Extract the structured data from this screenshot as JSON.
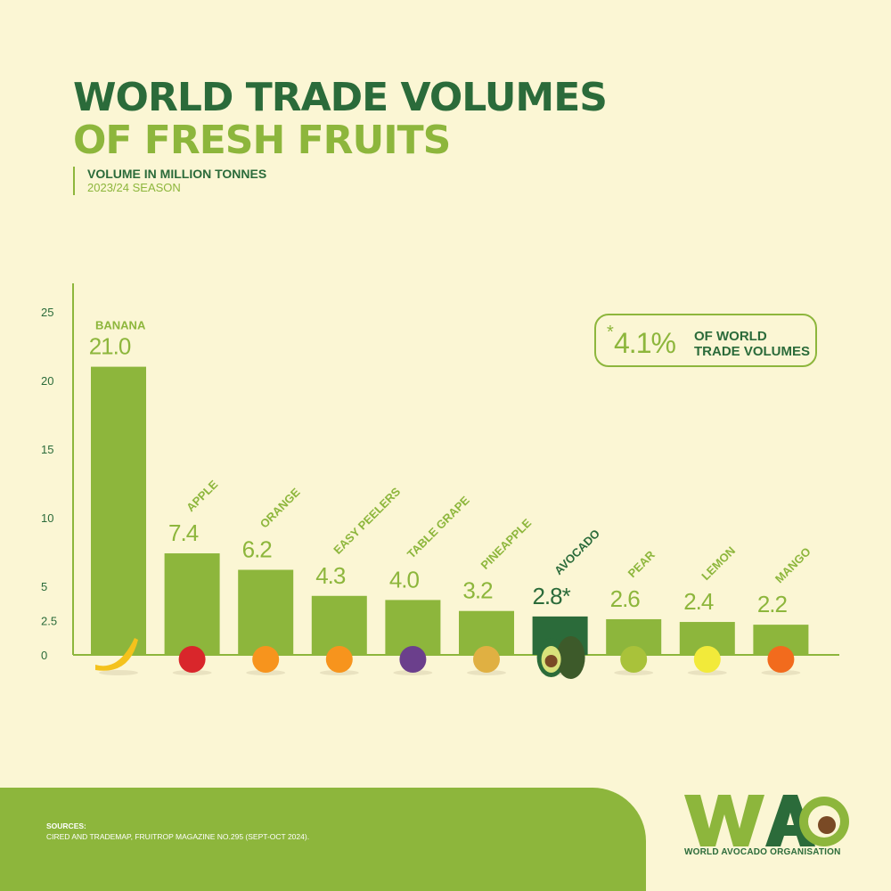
{
  "title_line1": "WORLD TRADE VOLUMES",
  "title_line2": "OF FRESH FRUITS",
  "subtitle_line1": "VOLUME IN MILLION TONNES",
  "subtitle_line2": "2023/24 SEASON",
  "callout": {
    "star": "*",
    "percent": "4.1%",
    "text_line1": "OF WORLD",
    "text_line2": "TRADE VOLUMES"
  },
  "sources_heading": "SOURCES:",
  "sources_text": "CIRED AND TRADEMAP, FRUITROP MAGAZINE NO.295 (SEPT-OCT 2024).",
  "logo_text": "WORLD AVOCADO ORGANISATION",
  "colors": {
    "bar": "#8db63c",
    "highlight": "#2b6b3a",
    "background": "#fbf6d4"
  },
  "chart_data": {
    "type": "bar",
    "categories": [
      "BANANA",
      "APPLE",
      "ORANGE",
      "EASY PEELERS",
      "TABLE GRAPE",
      "PINEAPPLE",
      "AVOCADO",
      "PEAR",
      "LEMON",
      "MANGO"
    ],
    "values": [
      21.0,
      7.4,
      6.2,
      4.3,
      4.0,
      3.2,
      2.8,
      2.6,
      2.4,
      2.2
    ],
    "value_labels": [
      "21.0",
      "7.4",
      "6.2",
      "4.3",
      "4.0",
      "3.2",
      "2.8*",
      "2.6",
      "2.4",
      "2.2"
    ],
    "highlight": "AVOCADO",
    "y_ticks": [
      0,
      2.5,
      5,
      10,
      15,
      20,
      25
    ],
    "ylim": [
      0,
      25
    ],
    "grid": false,
    "legend": "none"
  }
}
